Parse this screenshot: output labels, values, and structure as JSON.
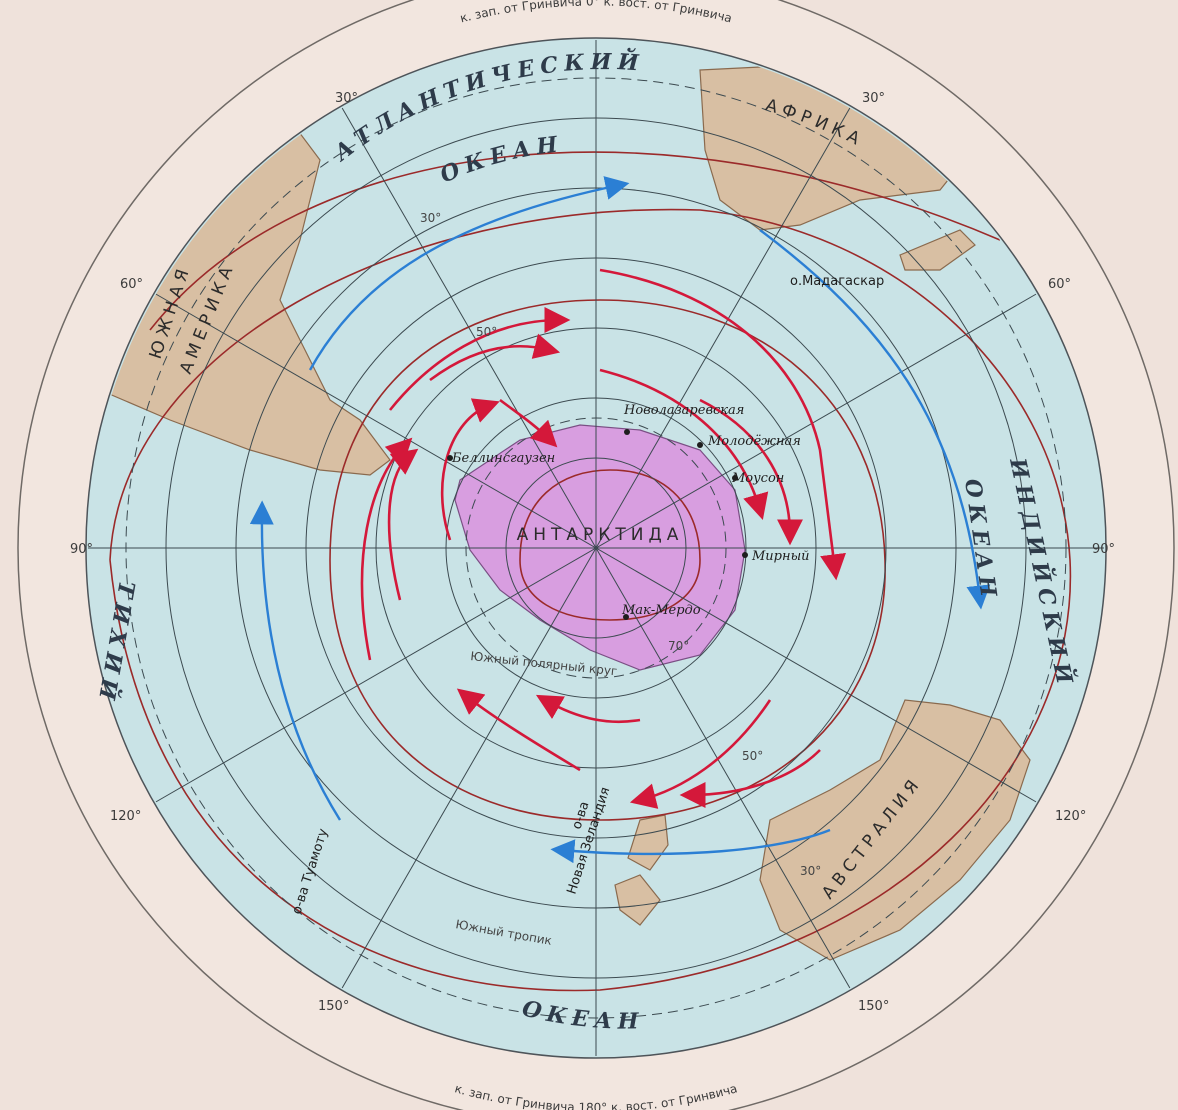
{
  "colors": {
    "background": "#efe2db",
    "ocean": "#c9e3e6",
    "land": "#d8bfa3",
    "antarctica": "#d89ee0",
    "warm_current": "#d4183a",
    "cold_current": "#2b7fd4",
    "isotherm": "#9b2a2a",
    "grid": "#3c4a50"
  },
  "rim": {
    "top": "к. зап. от Гринвича 0° к. вост. от Гринвича",
    "bottom": "к. зап. от Гринвича 180° к. вост. от Гринвича"
  },
  "degree_labels": {
    "top_left_30": "30°",
    "top_right_30": "30°",
    "left_60": "60°",
    "right_60": "60°",
    "left_90": "90°",
    "right_90": "90°",
    "left_120": "120°",
    "right_120": "120°",
    "bottom_left_150": "150°",
    "bottom_right_150": "150°",
    "lat_30_top": "30°",
    "lat_50_top": "50°",
    "lat_50_bottom": "50°",
    "lat_70": "70°",
    "lat_30_australia": "30°"
  },
  "oceans": {
    "atlantic_1": "АТЛАНТИЧЕСКИЙ",
    "atlantic_2": "ОКЕАН",
    "indian_1": "ИНДИЙСКИЙ",
    "indian_2": "ОКЕАН",
    "pacific_1": "ТИХИЙ",
    "pacific_2": "ОКЕАН"
  },
  "continents": {
    "south_america_1": "ЮЖНАЯ",
    "south_america_2": "АМЕРИКА",
    "africa": "АФРИКА",
    "australia": "АВСТРАЛИЯ",
    "antarctica": "АНТАРКТИДА"
  },
  "places": {
    "madagascar": "о.Мадагаскар",
    "new_zealand_1": "о-ва",
    "new_zealand_2": "Новая Зеландия",
    "tuamotu": "о-ва Туамоту",
    "tropic": "Южный тропик",
    "polar_circle": "Южный полярный круг"
  },
  "stations": {
    "novolazarevskaya": "Новолазаревская",
    "molodezhnaya": "Молодёжная",
    "mawson": "Моусон",
    "mirny": "Мирный",
    "mcmurdo": "Мак-Мердо",
    "bellingshausen": "Беллинсгаузен"
  }
}
